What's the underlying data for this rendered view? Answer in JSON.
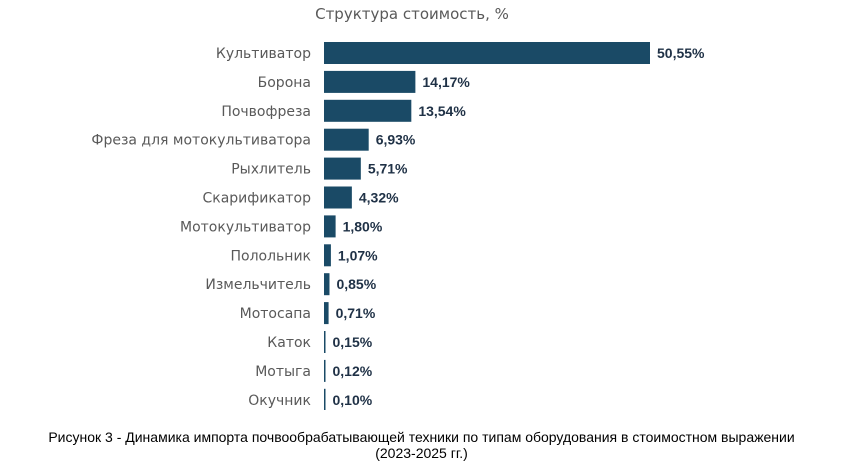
{
  "chart_data": {
    "type": "bar",
    "orientation": "horizontal",
    "title": "Структура стоимость, %",
    "xlabel": "",
    "ylabel": "",
    "categories": [
      "Культиватор",
      "Борона",
      "Почвофреза",
      "Фреза для мотокультиватора",
      "Рыхлитель",
      "Скарификатор",
      "Мотокультиватор",
      "Полольник",
      "Измельчитель",
      "Мотосапа",
      "Каток",
      "Мотыга",
      "Окучник"
    ],
    "values": [
      50.55,
      14.17,
      13.54,
      6.93,
      5.71,
      4.32,
      1.8,
      1.07,
      0.85,
      0.71,
      0.15,
      0.12,
      0.1
    ],
    "value_labels": [
      "50,55%",
      "14,17%",
      "13,54%",
      "6,93%",
      "5,71%",
      "4,32%",
      "1,80%",
      "1,07%",
      "0,85%",
      "0,71%",
      "0,15%",
      "0,12%",
      "0,10%"
    ],
    "grid": false,
    "legend": "none",
    "bar_color": "#1a4a66"
  },
  "caption": {
    "line1": "Рисунок 3 - Динамика импорта почвообрабатывающей техники по типам оборудования в стоимостном выражении",
    "line2": "(2023-2025 гг.)"
  }
}
